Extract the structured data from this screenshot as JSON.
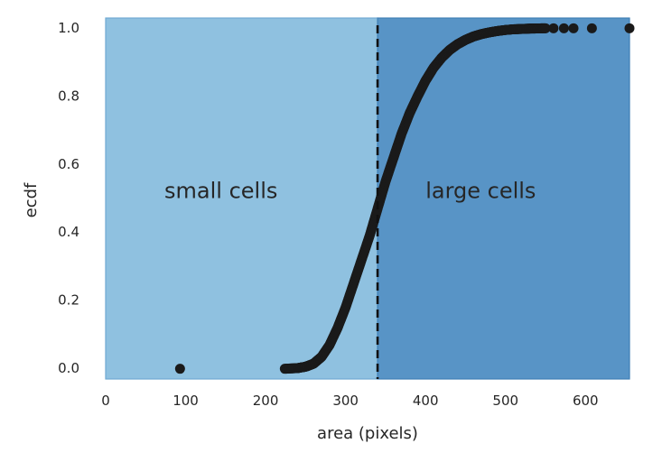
{
  "chart_data": {
    "type": "scatter",
    "xlabel": "area (pixels)",
    "ylabel": "ecdf",
    "xlim": [
      0,
      655
    ],
    "ylim": [
      -0.03,
      1.03
    ],
    "x_ticks": [
      0,
      100,
      200,
      300,
      400,
      500,
      600
    ],
    "y_ticks": [
      0.0,
      0.2,
      0.4,
      0.6,
      0.8,
      1.0
    ],
    "y_tick_labels": [
      "0.0",
      "0.2",
      "0.4",
      "0.6",
      "0.8",
      "1.0"
    ],
    "grid": false,
    "threshold": 340,
    "regions": [
      {
        "label": "small cells",
        "x_start": 0,
        "x_end": 340,
        "color": "#8fc1e0",
        "label_x": 215,
        "label_y": 0.52
      },
      {
        "label": "large cells",
        "x_start": 340,
        "x_end": 655,
        "color": "#5894c6",
        "label_x": 400,
        "label_y": 0.52
      }
    ],
    "marker_color": "#1a1a1a",
    "ecdf_curve": {
      "x": [
        224,
        240,
        250,
        260,
        270,
        280,
        290,
        300,
        310,
        320,
        330,
        340,
        350,
        360,
        370,
        380,
        390,
        400,
        410,
        420,
        430,
        440,
        450,
        460,
        470,
        480,
        490,
        500,
        510,
        520,
        530,
        540,
        550
      ],
      "y": [
        0.0,
        0.002,
        0.006,
        0.015,
        0.035,
        0.07,
        0.12,
        0.18,
        0.25,
        0.32,
        0.39,
        0.47,
        0.55,
        0.62,
        0.69,
        0.75,
        0.8,
        0.846,
        0.884,
        0.913,
        0.936,
        0.953,
        0.966,
        0.976,
        0.983,
        0.988,
        0.992,
        0.995,
        0.997,
        0.998,
        0.999,
        0.9995,
        1.0
      ]
    },
    "outliers": [
      {
        "x": 93,
        "y": 0.0
      },
      {
        "x": 560,
        "y": 1.0
      },
      {
        "x": 573,
        "y": 1.0
      },
      {
        "x": 585,
        "y": 1.0
      },
      {
        "x": 608,
        "y": 1.0
      },
      {
        "x": 655,
        "y": 1.0
      }
    ]
  }
}
